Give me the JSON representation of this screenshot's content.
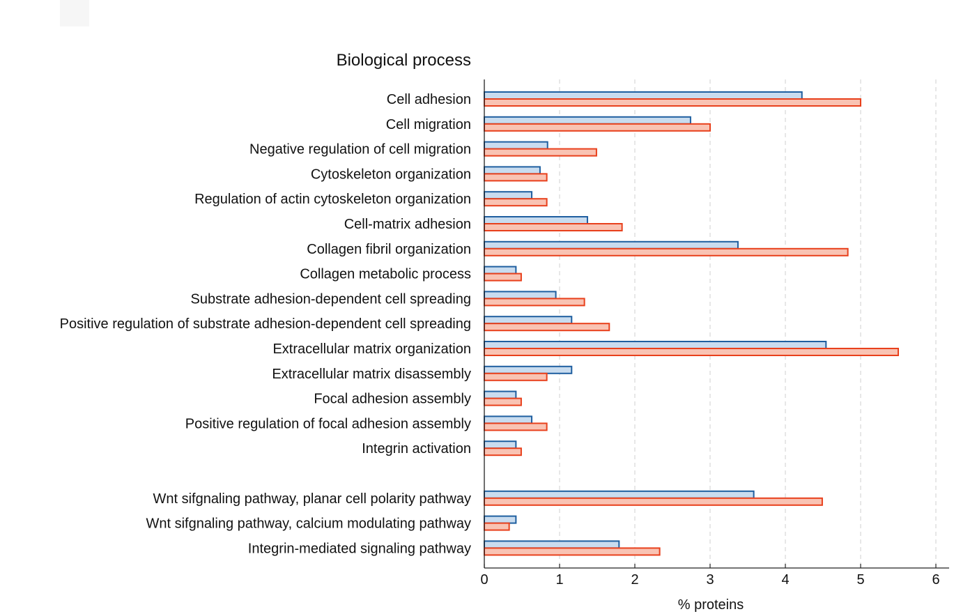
{
  "chart_data": {
    "type": "bar",
    "orientation": "horizontal",
    "title": "Biological process",
    "xlabel": "% proteins",
    "ylabel": "",
    "xlim": [
      0,
      6
    ],
    "xticks": [
      0,
      1,
      2,
      3,
      4,
      5,
      6
    ],
    "grid": "vertical dashed",
    "legend": "none",
    "categories": [
      "Cell adhesion",
      "Cell migration",
      "Negative regulation of cell migration",
      "Cytoskeleton organization",
      "Regulation of actin cytoskeleton organization",
      "Cell-matrix adhesion",
      "Collagen fibril organization",
      "Collagen metabolic process",
      "Substrate adhesion-dependent cell spreading",
      "Positive regulation of substrate adhesion-dependent cell spreading",
      "Extracellular matrix organization",
      "Extracellular matrix disassembly",
      "Focal adhesion assembly",
      "Positive regulation of focal adhesion assembly",
      "Integrin activation",
      "",
      "Wnt sifgnaling pathway, planar cell polarity pathway",
      "Wnt sifgnaling pathway, calcium modulating pathway",
      "Integrin-mediated signaling pathway"
    ],
    "series": [
      {
        "name": "series-blue",
        "color": "#1f5fa0",
        "fill": "#c9dcef",
        "values": [
          4.22,
          2.74,
          0.84,
          0.74,
          0.63,
          1.37,
          3.37,
          0.42,
          0.95,
          1.16,
          4.54,
          1.16,
          0.42,
          0.63,
          0.42,
          null,
          3.58,
          0.42,
          1.79
        ]
      },
      {
        "name": "series-red",
        "color": "#e8401c",
        "fill": "#f9c3b3",
        "values": [
          5.0,
          3.0,
          1.49,
          0.83,
          0.83,
          1.83,
          4.83,
          0.49,
          1.33,
          1.66,
          5.5,
          0.83,
          0.49,
          0.83,
          0.49,
          null,
          4.49,
          0.33,
          2.33
        ]
      }
    ]
  }
}
